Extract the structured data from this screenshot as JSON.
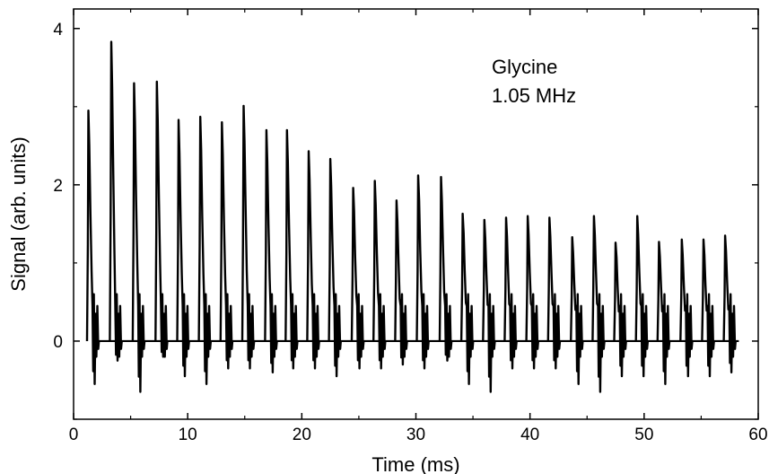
{
  "chart_data": {
    "type": "line",
    "title": "",
    "xlabel": "Time (ms)",
    "ylabel": "Signal (arb. units)",
    "xlim": [
      0,
      60
    ],
    "ylim": [
      -1,
      4.25
    ],
    "x_ticks": [
      0,
      10,
      20,
      30,
      40,
      50,
      60
    ],
    "y_ticks": [
      0,
      2,
      4
    ],
    "grid": false,
    "legend": "none",
    "line_color": "#000000",
    "annotation": [
      "Glycine",
      "1.05 MHz"
    ],
    "baseline": 0,
    "echo_peaks": [
      {
        "time": 1.3,
        "peak": 2.95,
        "min": -0.55
      },
      {
        "time": 3.3,
        "peak": 3.83,
        "min": -0.25
      },
      {
        "time": 5.3,
        "peak": 3.3,
        "min": -0.65
      },
      {
        "time": 7.3,
        "peak": 3.32,
        "min": -0.2
      },
      {
        "time": 9.2,
        "peak": 2.83,
        "min": -0.45
      },
      {
        "time": 11.1,
        "peak": 2.87,
        "min": -0.55
      },
      {
        "time": 13.0,
        "peak": 2.8,
        "min": -0.35
      },
      {
        "time": 14.9,
        "peak": 3.01,
        "min": -0.35
      },
      {
        "time": 16.9,
        "peak": 2.7,
        "min": -0.4
      },
      {
        "time": 18.7,
        "peak": 2.7,
        "min": -0.35
      },
      {
        "time": 20.6,
        "peak": 2.43,
        "min": -0.35
      },
      {
        "time": 22.5,
        "peak": 2.33,
        "min": -0.45
      },
      {
        "time": 24.5,
        "peak": 1.96,
        "min": -0.35
      },
      {
        "time": 26.4,
        "peak": 2.05,
        "min": -0.35
      },
      {
        "time": 28.3,
        "peak": 1.8,
        "min": -0.3
      },
      {
        "time": 30.2,
        "peak": 2.12,
        "min": -0.35
      },
      {
        "time": 32.2,
        "peak": 2.1,
        "min": -0.25
      },
      {
        "time": 34.1,
        "peak": 1.63,
        "min": -0.55
      },
      {
        "time": 36.0,
        "peak": 1.55,
        "min": -0.65
      },
      {
        "time": 37.9,
        "peak": 1.58,
        "min": -0.35
      },
      {
        "time": 39.8,
        "peak": 1.6,
        "min": -0.35
      },
      {
        "time": 41.7,
        "peak": 1.58,
        "min": -0.35
      },
      {
        "time": 43.7,
        "peak": 1.33,
        "min": -0.55
      },
      {
        "time": 45.6,
        "peak": 1.6,
        "min": -0.65
      },
      {
        "time": 47.5,
        "peak": 1.26,
        "min": -0.45
      },
      {
        "time": 49.4,
        "peak": 1.6,
        "min": -0.45
      },
      {
        "time": 51.3,
        "peak": 1.27,
        "min": -0.55
      },
      {
        "time": 53.3,
        "peak": 1.3,
        "min": -0.45
      },
      {
        "time": 55.2,
        "peak": 1.3,
        "min": -0.45
      },
      {
        "time": 57.1,
        "peak": 1.35,
        "min": -0.4
      }
    ]
  }
}
